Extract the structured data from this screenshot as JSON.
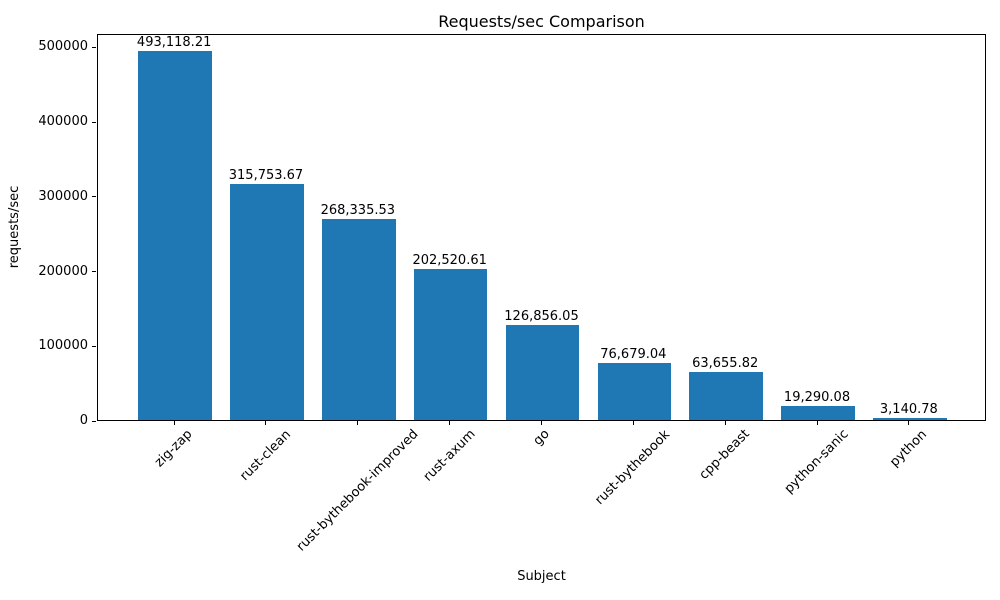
{
  "figure": {
    "background": "#ffffff",
    "text_color": "#000000"
  },
  "chart_data": {
    "type": "bar",
    "title": "Requests/sec Comparison",
    "xlabel": "Subject",
    "ylabel": "requests/sec",
    "categories": [
      "zig-zap",
      "rust-clean",
      "rust-bythebook-improved",
      "rust-axum",
      "go",
      "rust-bythebook",
      "cpp-beast",
      "python-sanic",
      "python"
    ],
    "values": [
      493118.21,
      315753.67,
      268335.53,
      202520.61,
      126856.05,
      76679.04,
      63655.82,
      19290.08,
      3140.78
    ],
    "bar_labels": [
      "493,118.21",
      "315,753.67",
      "268,335.53",
      "202,520.61",
      "126,856.05",
      "76,679.04",
      "63,655.82",
      "19,290.08",
      "3,140.78"
    ],
    "yticks": [
      0,
      100000,
      200000,
      300000,
      400000,
      500000
    ],
    "ytick_labels": [
      "0",
      "100000",
      "200000",
      "300000",
      "400000",
      "500000"
    ],
    "ylim": [
      0,
      517774
    ],
    "grid": false,
    "legend": null,
    "bar_color": "#1f77b4",
    "bar_width_fraction": 0.8,
    "x_tick_rotation_deg": 45
  }
}
